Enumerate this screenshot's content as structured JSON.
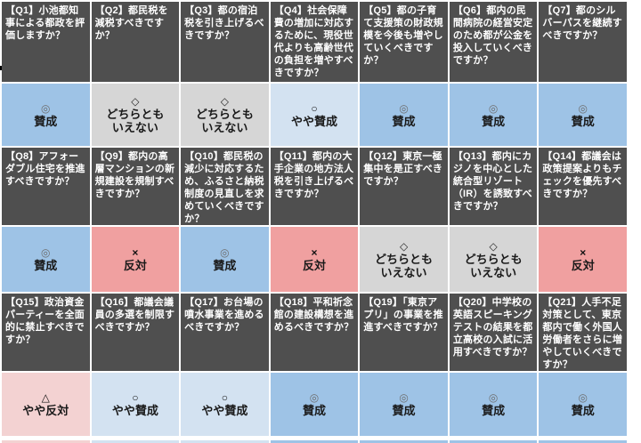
{
  "colors": {
    "question_bg": "#4F4F4F",
    "question_text": "#FFFFFF",
    "answer_text": "#1A1A1A",
    "agree_bg": "#9EC3E6",
    "somewhat_agree_bg": "#D3E2F1",
    "neutral_bg": "#D6D6D6",
    "somewhat_oppose_bg": "#F3D2D2",
    "oppose_bg": "#F0A0A0",
    "page_bg": "#FFFFFF"
  },
  "chart_data": {
    "type": "table",
    "title": "",
    "legend": [
      {
        "symbol": "◎",
        "label": "賛成",
        "bg": "#9EC3E6"
      },
      {
        "symbol": "○",
        "label": "やや賛成",
        "bg": "#D3E2F1"
      },
      {
        "symbol": "◇",
        "label": "どちらともいえない",
        "bg": "#D6D6D6"
      },
      {
        "symbol": "△",
        "label": "やや反対",
        "bg": "#F3D2D2"
      },
      {
        "symbol": "×",
        "label": "反対",
        "bg": "#F0A0A0"
      }
    ],
    "layout": {
      "columns": 7,
      "rows": 3,
      "cell_order": "Q1-Q7 / Q8-Q14 / Q15-Q21"
    },
    "questions": [
      {
        "id": "Q1",
        "label": "【Q1】小池都知事による都政を評価しますか？",
        "answer": {
          "symbol": "◎",
          "text": "賛成",
          "bg": "#9EC3E6",
          "symbol_color": "#6E6E6E"
        }
      },
      {
        "id": "Q2",
        "label": "【Q2】都民税を減税すべきですか？",
        "answer": {
          "symbol": "◇",
          "text": "どちらとも\nいえない",
          "bg": "#D6D6D6",
          "symbol_color": "#2A2A2A"
        }
      },
      {
        "id": "Q3",
        "label": "【Q3】都の宿泊税を引き上げるべきですか？",
        "answer": {
          "symbol": "◇",
          "text": "どちらとも\nいえない",
          "bg": "#D6D6D6",
          "symbol_color": "#2A2A2A"
        }
      },
      {
        "id": "Q4",
        "label": "【Q4】社会保障費の増加に対応するために、現役世代よりも高齢世代の負担を増やすべきですか？",
        "answer": {
          "symbol": "○",
          "text": "やや賛成",
          "bg": "#D3E2F1",
          "symbol_color": "#111111"
        }
      },
      {
        "id": "Q5",
        "label": "【Q5】都の子育て支援策の財政規模を今後も増やしていくべきですか？",
        "answer": {
          "symbol": "◎",
          "text": "賛成",
          "bg": "#9EC3E6",
          "symbol_color": "#6E6E6E"
        }
      },
      {
        "id": "Q6",
        "label": "【Q6】都内の民間病院の経営安定のため都が公金を投入していくべきですか？",
        "answer": {
          "symbol": "◎",
          "text": "賛成",
          "bg": "#9EC3E6",
          "symbol_color": "#6E6E6E"
        }
      },
      {
        "id": "Q7",
        "label": "【Q7】都のシルバーパスを継続すべきですか？",
        "answer": {
          "symbol": "◎",
          "text": "賛成",
          "bg": "#9EC3E6",
          "symbol_color": "#6E6E6E"
        }
      },
      {
        "id": "Q8",
        "label": "【Q8】アフォーダブル住宅を推進すべきですか？",
        "answer": {
          "symbol": "◎",
          "text": "賛成",
          "bg": "#9EC3E6",
          "symbol_color": "#6E6E6E"
        }
      },
      {
        "id": "Q9",
        "label": "【Q9】都内の高層マンションの新規建設を規制すべきですか？",
        "answer": {
          "symbol": "×",
          "text": "反対",
          "bg": "#F0A0A0",
          "symbol_color": "#111111"
        }
      },
      {
        "id": "Q10",
        "label": "【Q10】都民税の減少に対応するため、ふるさと納税制度の見直しを求めていくべきですか？",
        "answer": {
          "symbol": "◎",
          "text": "賛成",
          "bg": "#9EC3E6",
          "symbol_color": "#6E6E6E"
        }
      },
      {
        "id": "Q11",
        "label": "【Q11】都内の大手企業の地方法人税を引き上げるべきですか？",
        "answer": {
          "symbol": "×",
          "text": "反対",
          "bg": "#F0A0A0",
          "symbol_color": "#111111"
        }
      },
      {
        "id": "Q12",
        "label": "【Q12】東京一極集中を是正すべきですか？",
        "answer": {
          "symbol": "◇",
          "text": "どちらとも\nいえない",
          "bg": "#D6D6D6",
          "symbol_color": "#2A2A2A"
        }
      },
      {
        "id": "Q13",
        "label": "【Q13】都内にカジノを中心とした統合型リゾート（IR）を誘致すべきですか？",
        "answer": {
          "symbol": "◇",
          "text": "どちらとも\nいえない",
          "bg": "#D6D6D6",
          "symbol_color": "#2A2A2A"
        }
      },
      {
        "id": "Q14",
        "label": "【Q14】都議会は政策提案よりもチェックを優先すべきですか？",
        "answer": {
          "symbol": "×",
          "text": "反対",
          "bg": "#F0A0A0",
          "symbol_color": "#111111"
        }
      },
      {
        "id": "Q15",
        "label": "【Q15】政治資金パーティーを全面的に禁止すべきですか？",
        "answer": {
          "symbol": "△",
          "text": "やや反対",
          "bg": "#F3D2D2",
          "symbol_color": "#111111"
        }
      },
      {
        "id": "Q16",
        "label": "【Q16】都議会議員の多選を制限すべきですか？",
        "answer": {
          "symbol": "○",
          "text": "やや賛成",
          "bg": "#D3E2F1",
          "symbol_color": "#111111"
        }
      },
      {
        "id": "Q17",
        "label": "【Q17】お台場の噴水事業を進めるべきですか？",
        "answer": {
          "symbol": "○",
          "text": "やや賛成",
          "bg": "#D3E2F1",
          "symbol_color": "#111111"
        }
      },
      {
        "id": "Q18",
        "label": "【Q18】平和祈念館の建設構想を進めるべきですか？",
        "answer": {
          "symbol": "◎",
          "text": "賛成",
          "bg": "#9EC3E6",
          "symbol_color": "#6E6E6E"
        }
      },
      {
        "id": "Q19",
        "label": "【Q19】「東京アプリ」の事業を推進すべきですか？",
        "answer": {
          "symbol": "◎",
          "text": "賛成",
          "bg": "#9EC3E6",
          "symbol_color": "#6E6E6E"
        }
      },
      {
        "id": "Q20",
        "label": "【Q20】中学校の英語スピーキングテストの結果を都立高校の入試に活用すべきですか？",
        "answer": {
          "symbol": "◎",
          "text": "賛成",
          "bg": "#9EC3E6",
          "symbol_color": "#6E6E6E"
        }
      },
      {
        "id": "Q21",
        "label": "【Q21】人手不足対策として、東京都内で働く外国人労働者をさらに増やしていくべきですか？",
        "answer": {
          "symbol": "◎",
          "text": "賛成",
          "bg": "#9EC3E6",
          "symbol_color": "#6E6E6E"
        }
      }
    ]
  }
}
